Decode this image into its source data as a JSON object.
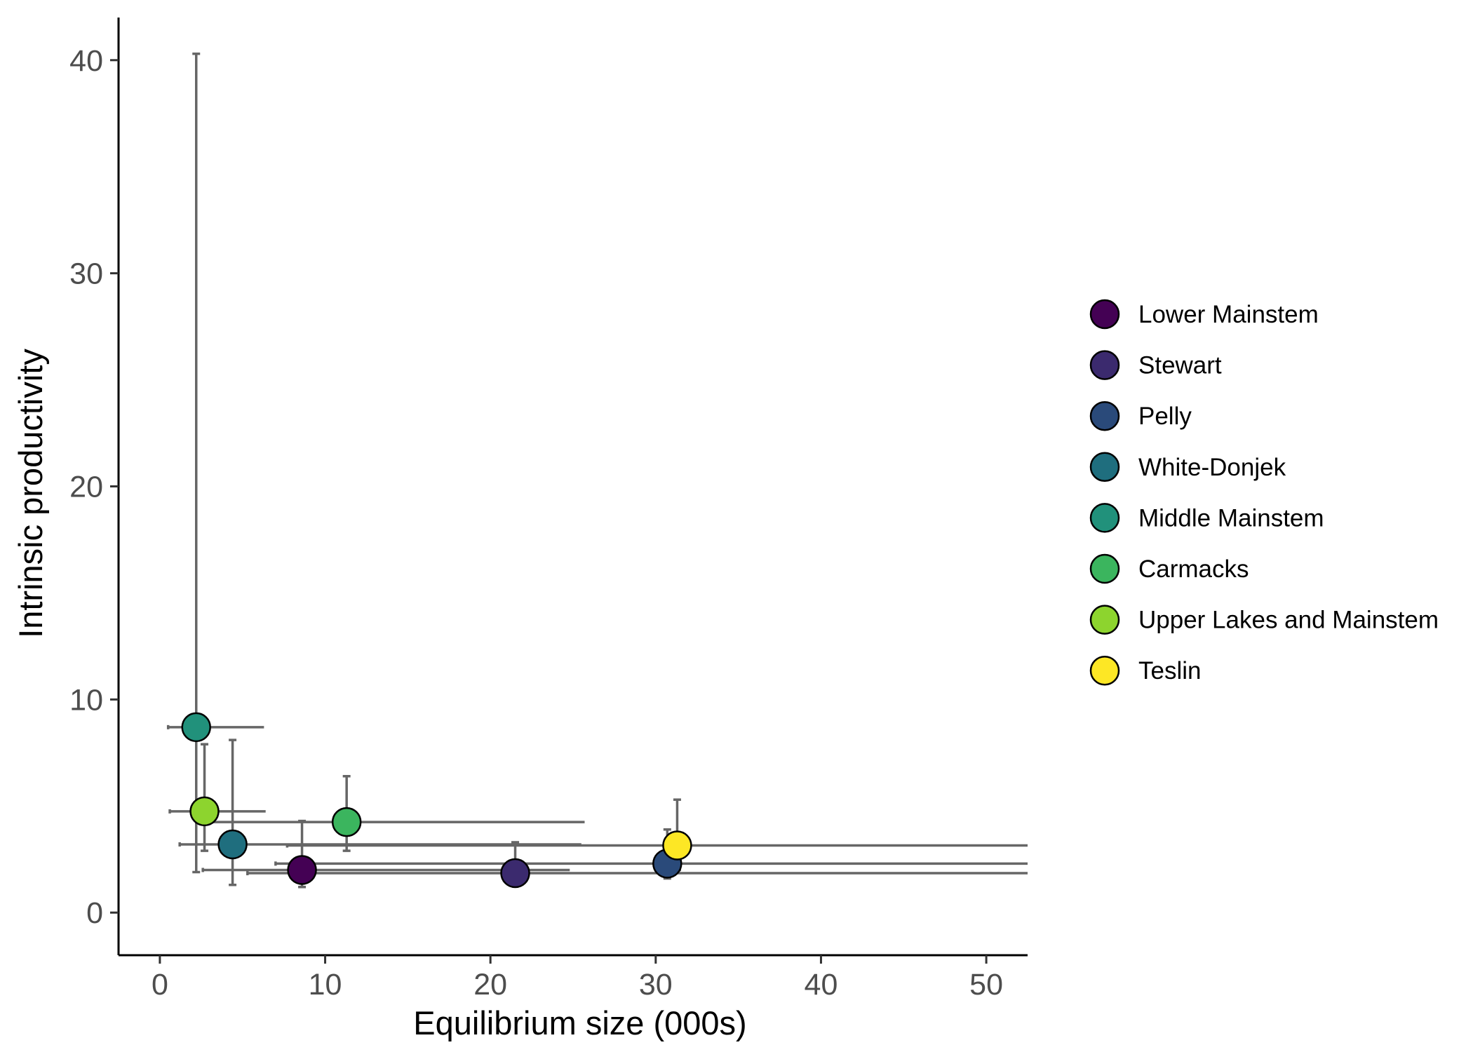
{
  "chart_data": {
    "type": "scatter",
    "title": "",
    "xlabel": "Equilibrium size (000s)",
    "ylabel": "Intrinsic productivity",
    "xlim": [
      -2.5,
      52.5
    ],
    "ylim": [
      -2,
      42
    ],
    "x_ticks": [
      0,
      10,
      20,
      30,
      40,
      50
    ],
    "y_ticks": [
      0,
      10,
      20,
      30,
      40
    ],
    "x_tick_labels": [
      "0",
      "10",
      "20",
      "30",
      "40",
      "50"
    ],
    "y_tick_labels": [
      "0",
      "10",
      "20",
      "30",
      "40"
    ],
    "grid": false,
    "legend_position": "right",
    "error_bar_color": "#666666",
    "series": [
      {
        "name": "Lower Mainstem",
        "color": "#440154",
        "x": 8.6,
        "y": 2.0,
        "x_lo": 2.6,
        "x_hi": 24.8,
        "y_lo": 1.2,
        "y_hi": 4.3
      },
      {
        "name": "Stewart",
        "color": "#3B2A6E",
        "x": 21.5,
        "y": 1.85,
        "x_lo": 5.3,
        "x_hi": 52.5,
        "y_lo": 1.6,
        "y_hi": 3.3
      },
      {
        "name": "Pelly",
        "color": "#2A4A7A",
        "x": 30.7,
        "y": 2.3,
        "x_lo": 7.0,
        "x_hi": 52.5,
        "y_lo": 1.6,
        "y_hi": 3.9
      },
      {
        "name": "White-Donjek",
        "color": "#1F6E7E",
        "x": 4.4,
        "y": 3.2,
        "x_lo": 1.2,
        "x_hi": 25.5,
        "y_lo": 1.3,
        "y_hi": 8.1
      },
      {
        "name": "Middle Mainstem",
        "color": "#21917B",
        "x": 2.2,
        "y": 8.7,
        "x_lo": 0.5,
        "x_hi": 6.3,
        "y_lo": 1.9,
        "y_hi": 40.3
      },
      {
        "name": "Carmacks",
        "color": "#3BB55E",
        "x": 11.3,
        "y": 4.25,
        "x_lo": 2.6,
        "x_hi": 25.7,
        "y_lo": 2.9,
        "y_hi": 6.4
      },
      {
        "name": "Upper Lakes and Mainstem",
        "color": "#8DD42E",
        "x": 2.7,
        "y": 4.75,
        "x_lo": 0.6,
        "x_hi": 6.4,
        "y_lo": 2.9,
        "y_hi": 7.9
      },
      {
        "name": "Teslin",
        "color": "#FDE725",
        "x": 31.3,
        "y": 3.15,
        "x_lo": 7.7,
        "x_hi": 52.5,
        "y_lo": 2.0,
        "y_hi": 5.3
      }
    ]
  }
}
